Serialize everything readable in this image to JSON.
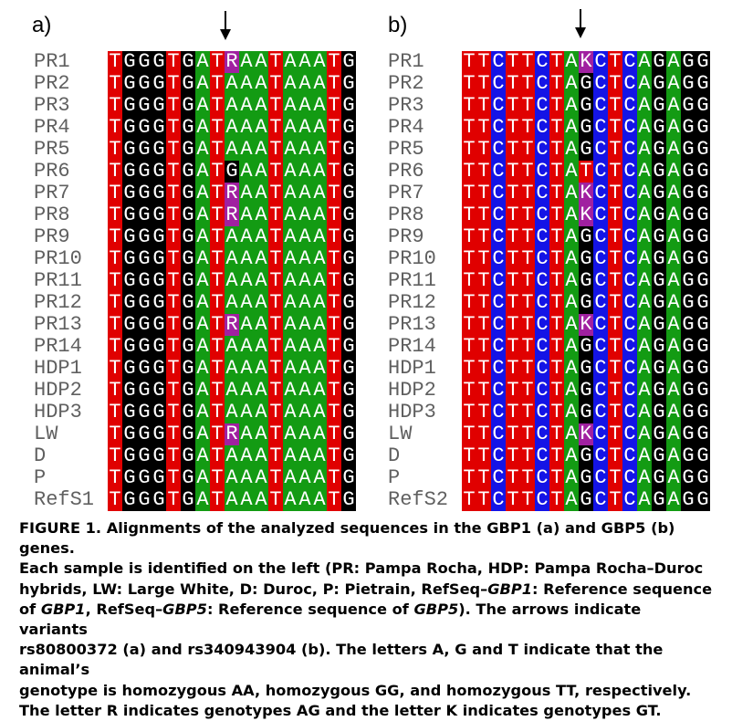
{
  "panels": [
    {
      "label": "a)",
      "names": [
        "PR1",
        "PR2",
        "PR3",
        "PR4",
        "PR5",
        "PR6",
        "PR7",
        "PR8",
        "PR9",
        "PR10",
        "PR11",
        "PR12",
        "PR13",
        "PR14",
        "HDP1",
        "HDP2",
        "HDP3",
        "LW",
        "D",
        "P",
        "RefS1"
      ],
      "sequences": [
        "TGGGTGATRAATAAATG",
        "TGGGTGATAAATAAATG",
        "TGGGTGATAAATAAATG",
        "TGGGTGATAAATAAATG",
        "TGGGTGATAAATAAATG",
        "TGGGTGATGAATAAATG",
        "TGGGTGATRAATAAATG",
        "TGGGTGATRAATAAATG",
        "TGGGTGATAAATAAATG",
        "TGGGTGATAAATAAATG",
        "TGGGTGATAAATAAATG",
        "TGGGTGATAAATAAATG",
        "TGGGTGATRAATAAATG",
        "TGGGTGATAAATAAATG",
        "TGGGTGATAAATAAATG",
        "TGGGTGATAAATAAATG",
        "TGGGTGATAAATAAATG",
        "TGGGTGATRAATAAATG",
        "TGGGTGATAAATAAATG",
        "TGGGTGATAAATAAATG",
        "TGGGTGATAAATAAATG"
      ],
      "arrow_column": 8
    },
    {
      "label": "b)",
      "names": [
        "PR1",
        "PR2",
        "PR3",
        "PR4",
        "PR5",
        "PR6",
        "PR7",
        "PR8",
        "PR9",
        "PR10",
        "PR11",
        "PR12",
        "PR13",
        "PR14",
        "HDP1",
        "HDP2",
        "HDP3",
        "LW",
        "D",
        "P",
        "RefS2"
      ],
      "sequences": [
        "TTCTTCTAKCTCAGAGG",
        "TTCTTCTAGCTCAGAGG",
        "TTCTTCTAGCTCAGAGG",
        "TTCTTCTAGCTCAGAGG",
        "TTCTTCTAGCTCAGAGG",
        "TTCTTCTATCTCAGAGG",
        "TTCTTCTAKCTCAGAGG",
        "TTCTTCTAKCTCAGAGG",
        "TTCTTCTAGCTCAGAGG",
        "TTCTTCTAGCTCAGAGG",
        "TTCTTCTAGCTCAGAGG",
        "TTCTTCTAGCTCAGAGG",
        "TTCTTCTAKCTCAGAGG",
        "TTCTTCTAGCTCAGAGG",
        "TTCTTCTAGCTCAGAGG",
        "TTCTTCTAGCTCAGAGG",
        "TTCTTCTAGCTCAGAGG",
        "TTCTTCTAKCTCAGAGG",
        "TTCTTCTAGCTCAGAGG",
        "TTCTTCTAGCTCAGAGG",
        "TTCTTCTAGCTCAGAGG"
      ],
      "arrow_column": 8
    }
  ],
  "base_colors": {
    "A": "#139b13",
    "C": "#1414e6",
    "G": "#000000",
    "T": "#e00000",
    "R": "#a020a0",
    "K": "#a020a0"
  },
  "caption": {
    "l1": "FIGURE 1. Alignments of the analyzed sequences in the GBP1 (a) and GBP5 (b) genes.",
    "l2": "Each sample is identified on the left (PR: Pampa Rocha, HDP: Pampa Rocha–Duroc",
    "l3a": "hybrids, LW: Large White, D: Duroc, P: Pietrain, RefSeq–",
    "l3b": "GBP1",
    "l3c": ": Reference sequence",
    "l4a": "of ",
    "l4b": "GBP1",
    "l4c": ", RefSeq–",
    "l4d": "GBP5",
    "l4e": ": Reference sequence of ",
    "l4f": "GBP5",
    "l4g": "). The arrows indicate variants",
    "l5": "rs80800372 (a) and rs340943904 (b). The letters A, G and T indicate that the animal’s",
    "l6": "genotype is homozygous AA, homozygous GG, and homozygous TT, respectively.",
    "l7": "The letter R indicates genotypes AG and the letter K indicates genotypes GT."
  }
}
